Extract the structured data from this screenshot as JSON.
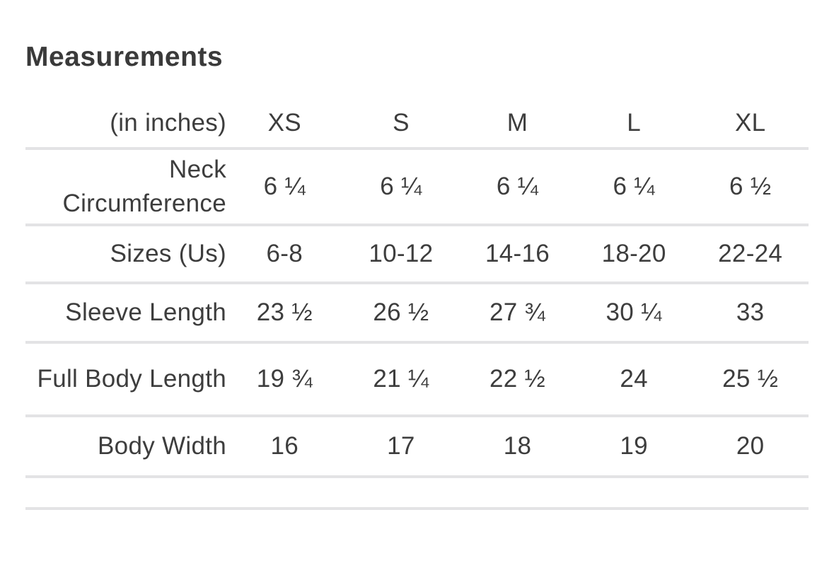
{
  "title": "Measurements",
  "colors": {
    "text": "#3d3d3d",
    "title_text": "#3a3a3a",
    "divider": "#e3e3e5",
    "background": "#ffffff"
  },
  "table": {
    "header": {
      "label": "(in inches)",
      "sizes": [
        "XS",
        "S",
        "M",
        "L",
        "XL"
      ]
    },
    "rows": [
      {
        "label": "Neck Circumference",
        "values": [
          "6 ¼",
          "6 ¼",
          "6 ¼",
          "6 ¼",
          "6 ½"
        ]
      },
      {
        "label": "Sizes (Us)",
        "values": [
          "6-8",
          "10-12",
          "14-16",
          "18-20",
          "22-24"
        ]
      },
      {
        "label": "Sleeve Length",
        "values": [
          "23 ½",
          "26 ½",
          "27 ¾",
          "30 ¼",
          "33"
        ]
      },
      {
        "label": "Full Body Length",
        "values": [
          "19 ¾",
          "21 ¼",
          "22 ½",
          "24",
          "25 ½"
        ]
      },
      {
        "label": "Body Width",
        "values": [
          "16",
          "17",
          "18",
          "19",
          "20"
        ]
      }
    ]
  },
  "chart_data": {
    "type": "table",
    "title": "Measurements",
    "unit_note": "(in inches)",
    "categories": [
      "XS",
      "S",
      "M",
      "L",
      "XL"
    ],
    "series": [
      {
        "name": "Neck Circumference",
        "values": [
          "6 ¼",
          "6 ¼",
          "6 ¼",
          "6 ¼",
          "6 ½"
        ]
      },
      {
        "name": "Sizes (Us)",
        "values": [
          "6-8",
          "10-12",
          "14-16",
          "18-20",
          "22-24"
        ]
      },
      {
        "name": "Sleeve Length",
        "values": [
          "23 ½",
          "26 ½",
          "27 ¾",
          "30 ¼",
          "33"
        ]
      },
      {
        "name": "Full Body Length",
        "values": [
          "19 ¾",
          "21 ¼",
          "22 ½",
          "24",
          "25 ½"
        ]
      },
      {
        "name": "Body Width",
        "values": [
          "16",
          "17",
          "18",
          "19",
          "20"
        ]
      }
    ]
  }
}
